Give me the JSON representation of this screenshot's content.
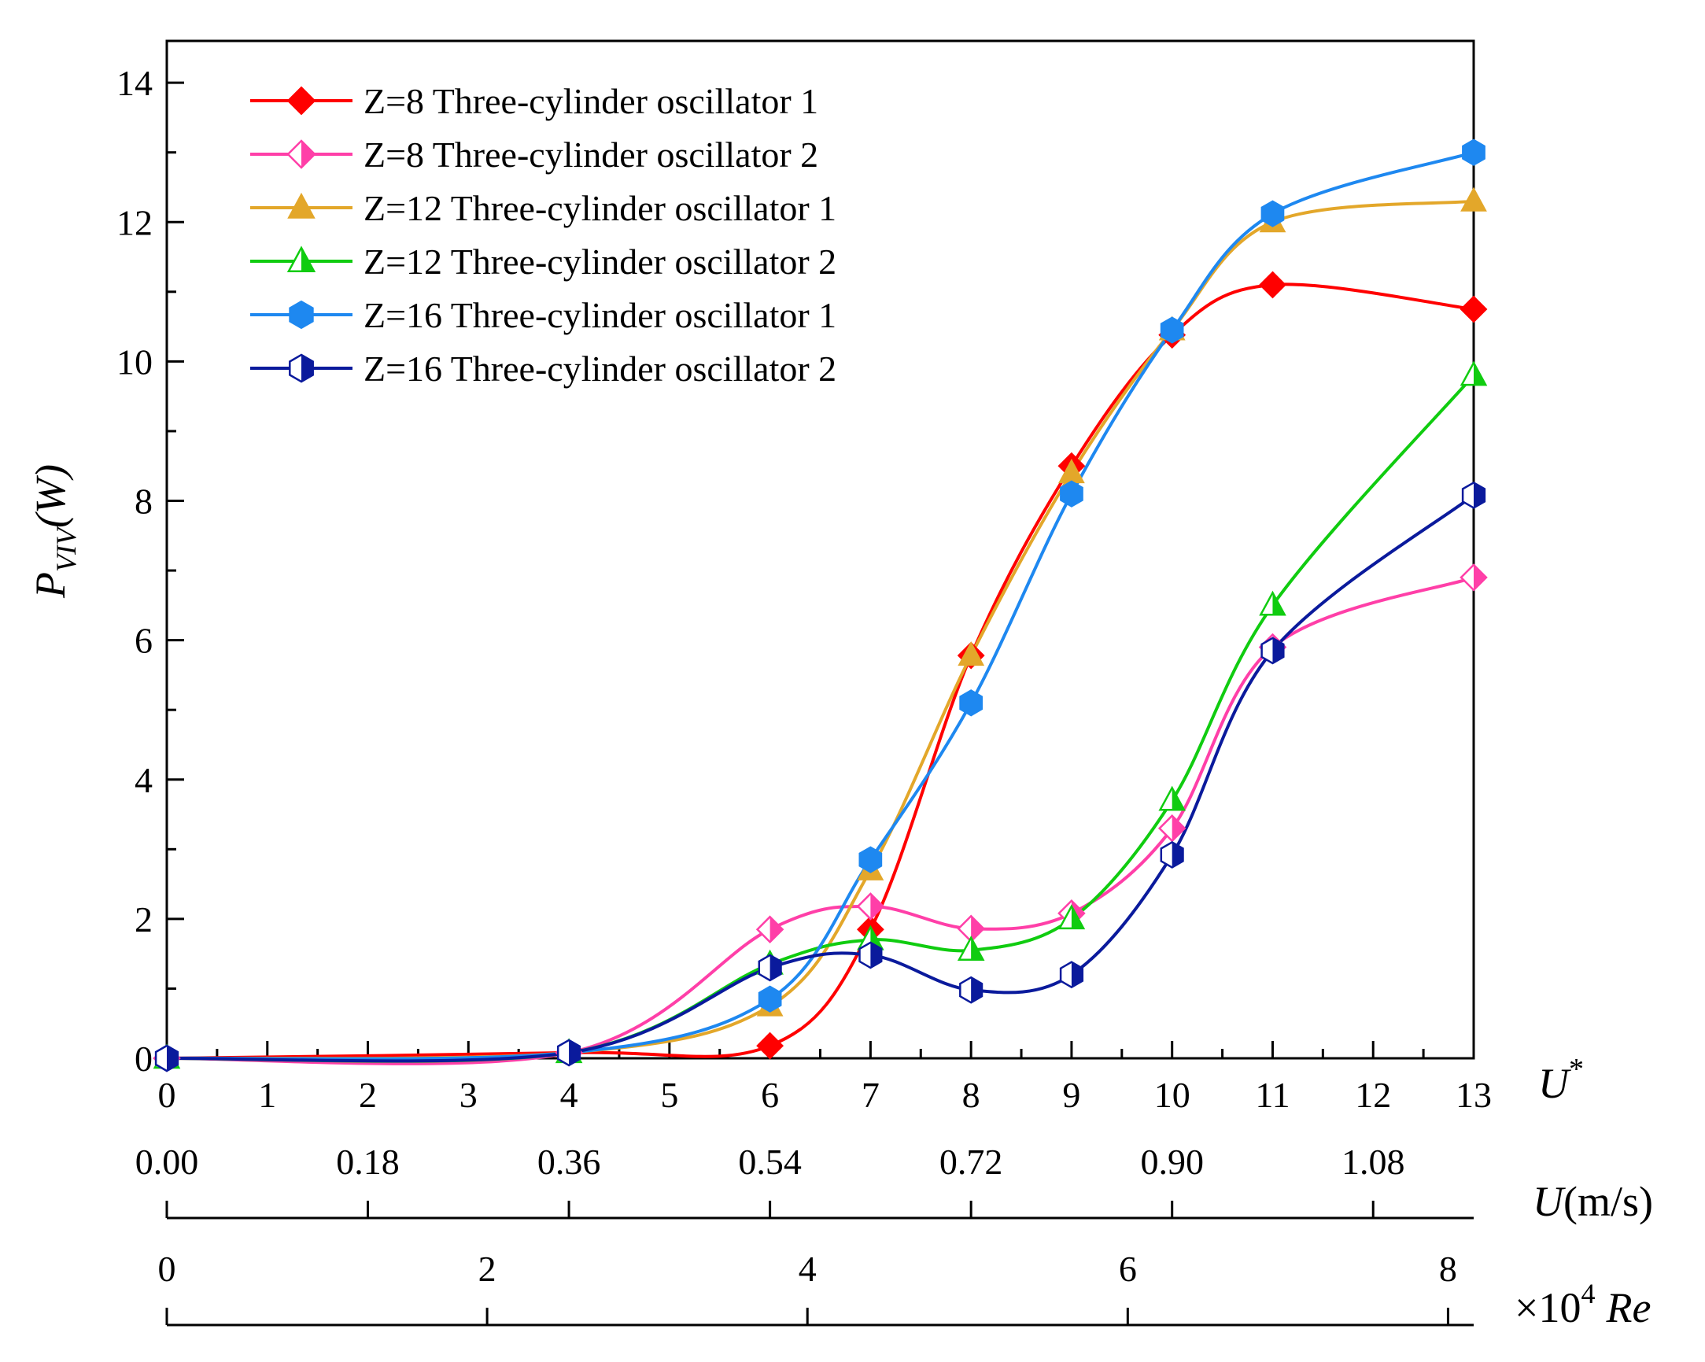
{
  "chart_data": {
    "type": "line",
    "title": "",
    "ylabel": "P",
    "ylabel_subscript": "VIV",
    "ylabel_suffix": "(W)",
    "ylim": [
      0,
      14.6
    ],
    "y_ticks": [
      0,
      2,
      4,
      6,
      8,
      10,
      12,
      14
    ],
    "y_tick_labels": [
      "0",
      "2",
      "4",
      "6",
      "8",
      "10",
      "12",
      "14"
    ],
    "x_primary": {
      "label_main": "U",
      "label_sup": "*",
      "range": [
        0,
        13
      ],
      "ticks": [
        0,
        1,
        2,
        3,
        4,
        5,
        6,
        7,
        8,
        9,
        10,
        11,
        12,
        13
      ],
      "tick_labels": [
        "0",
        "1",
        "2",
        "3",
        "4",
        "5",
        "6",
        "7",
        "8",
        "9",
        "10",
        "11",
        "12",
        "13"
      ]
    },
    "x_velocity": {
      "label_main": "U",
      "label_unit": "(m/s)",
      "range": [
        0,
        1.17
      ],
      "ticks": [
        0,
        0.18,
        0.36,
        0.54,
        0.72,
        0.9,
        1.08
      ],
      "tick_labels": [
        "0.00",
        "0.18",
        "0.36",
        "0.54",
        "0.72",
        "0.90",
        "1.08"
      ]
    },
    "x_reynolds": {
      "label_prefix": "×10",
      "label_exp": "4",
      "label_main": "Re",
      "range": [
        0,
        8.16
      ],
      "ticks": [
        0,
        2,
        4,
        6,
        8
      ],
      "tick_labels": [
        "0",
        "2",
        "4",
        "6",
        "8"
      ]
    },
    "x": [
      0,
      4,
      6,
      7,
      8,
      9,
      10,
      11,
      13
    ],
    "series": [
      {
        "name": "Z=8 Three-cylinder oscillator 1",
        "color": "#ff0000",
        "marker": "diamond",
        "fill": "full",
        "values": [
          0,
          0.08,
          0.18,
          1.85,
          5.78,
          8.5,
          10.38,
          11.1,
          10.75
        ]
      },
      {
        "name": "Z=8 Three-cylinder oscillator 2",
        "color": "#ff3fa8",
        "marker": "diamond",
        "fill": "half",
        "values": [
          0,
          0.08,
          1.85,
          2.18,
          1.86,
          2.08,
          3.3,
          5.9,
          6.9
        ]
      },
      {
        "name": "Z=12 Three-cylinder oscillator 1",
        "color": "#e3a72a",
        "marker": "triangle",
        "fill": "full",
        "values": [
          0,
          0.08,
          0.75,
          2.7,
          5.78,
          8.4,
          10.45,
          12.0,
          12.3
        ]
      },
      {
        "name": "Z=12 Three-cylinder oscillator 2",
        "color": "#10cc10",
        "marker": "triangle",
        "fill": "half",
        "values": [
          0,
          0.08,
          1.35,
          1.7,
          1.55,
          2.0,
          3.7,
          6.5,
          9.8
        ]
      },
      {
        "name": "Z=16 Three-cylinder oscillator 1",
        "color": "#1e88f0",
        "marker": "hexagon",
        "fill": "full",
        "values": [
          0,
          0.08,
          0.85,
          2.85,
          5.1,
          8.1,
          10.45,
          12.12,
          13.0
        ]
      },
      {
        "name": "Z=16 Three-cylinder oscillator 2",
        "color": "#0a1a9c",
        "marker": "hexagon",
        "fill": "half",
        "values": [
          0,
          0.08,
          1.3,
          1.48,
          0.98,
          1.2,
          2.92,
          5.85,
          8.08
        ]
      }
    ],
    "legend_position": "top-left",
    "grid": false
  }
}
